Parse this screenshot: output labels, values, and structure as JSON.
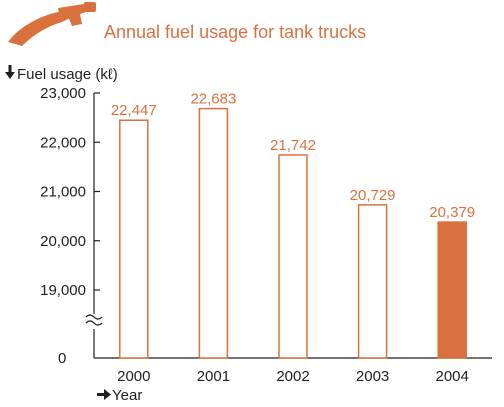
{
  "chart_data": {
    "type": "bar",
    "title": "Annual fuel usage for tank trucks",
    "ylabel": "Fuel usage (kℓ)",
    "xlabel": "Year",
    "categories": [
      "2000",
      "2001",
      "2002",
      "2003",
      "2004"
    ],
    "values": [
      22447,
      22683,
      21742,
      20729,
      20379
    ],
    "value_labels": [
      "22,447",
      "22,683",
      "21,742",
      "20,729",
      "20,379"
    ],
    "highlighted": "2004",
    "y_ticks": [
      19000,
      20000,
      21000,
      22000,
      23000
    ],
    "y_tick_labels": [
      "19,000",
      "20,000",
      "21,000",
      "22,000",
      "23,000"
    ],
    "y_zero_label": "0",
    "ylim": [
      18000,
      23000
    ],
    "axis_break": true,
    "grid": false,
    "legend": "none",
    "colors": {
      "accent": "#d9713f",
      "axis": "#231f20"
    }
  },
  "icons": {
    "title_icon": "fuel-nozzle-icon",
    "ylabel_icon": "arrow-down-icon",
    "xlabel_icon": "arrow-right-icon"
  }
}
